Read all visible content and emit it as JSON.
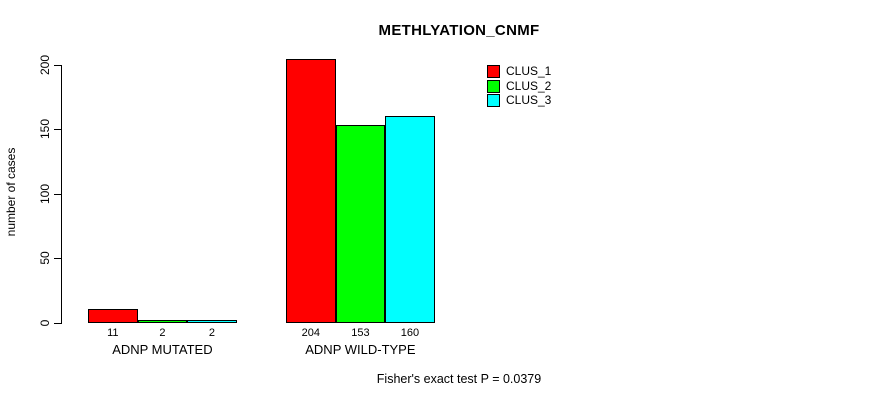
{
  "chart_data": {
    "type": "bar",
    "title": "METHLYATION_CNMF",
    "ylabel": "number of cases",
    "xlabel": "",
    "ylim": [
      0,
      200
    ],
    "yticks": [
      0,
      50,
      100,
      150,
      200
    ],
    "grid": false,
    "legend_position": "top-right",
    "categories": [
      "ADNP MUTATED",
      "ADNP WILD-TYPE"
    ],
    "series": [
      {
        "name": "CLUS_1",
        "color": "#ff0000",
        "values": [
          11,
          204
        ]
      },
      {
        "name": "CLUS_2",
        "color": "#00ff00",
        "values": [
          2,
          153
        ]
      },
      {
        "name": "CLUS_3",
        "color": "#00ffff",
        "values": [
          2,
          160
        ]
      }
    ],
    "show_bar_value_labels": true,
    "footnote": "Fisher's exact test P = 0.0379",
    "colors": {
      "bar_border": "#000000",
      "axis": "#000000",
      "text": "#000000",
      "background": "#ffffff"
    }
  }
}
